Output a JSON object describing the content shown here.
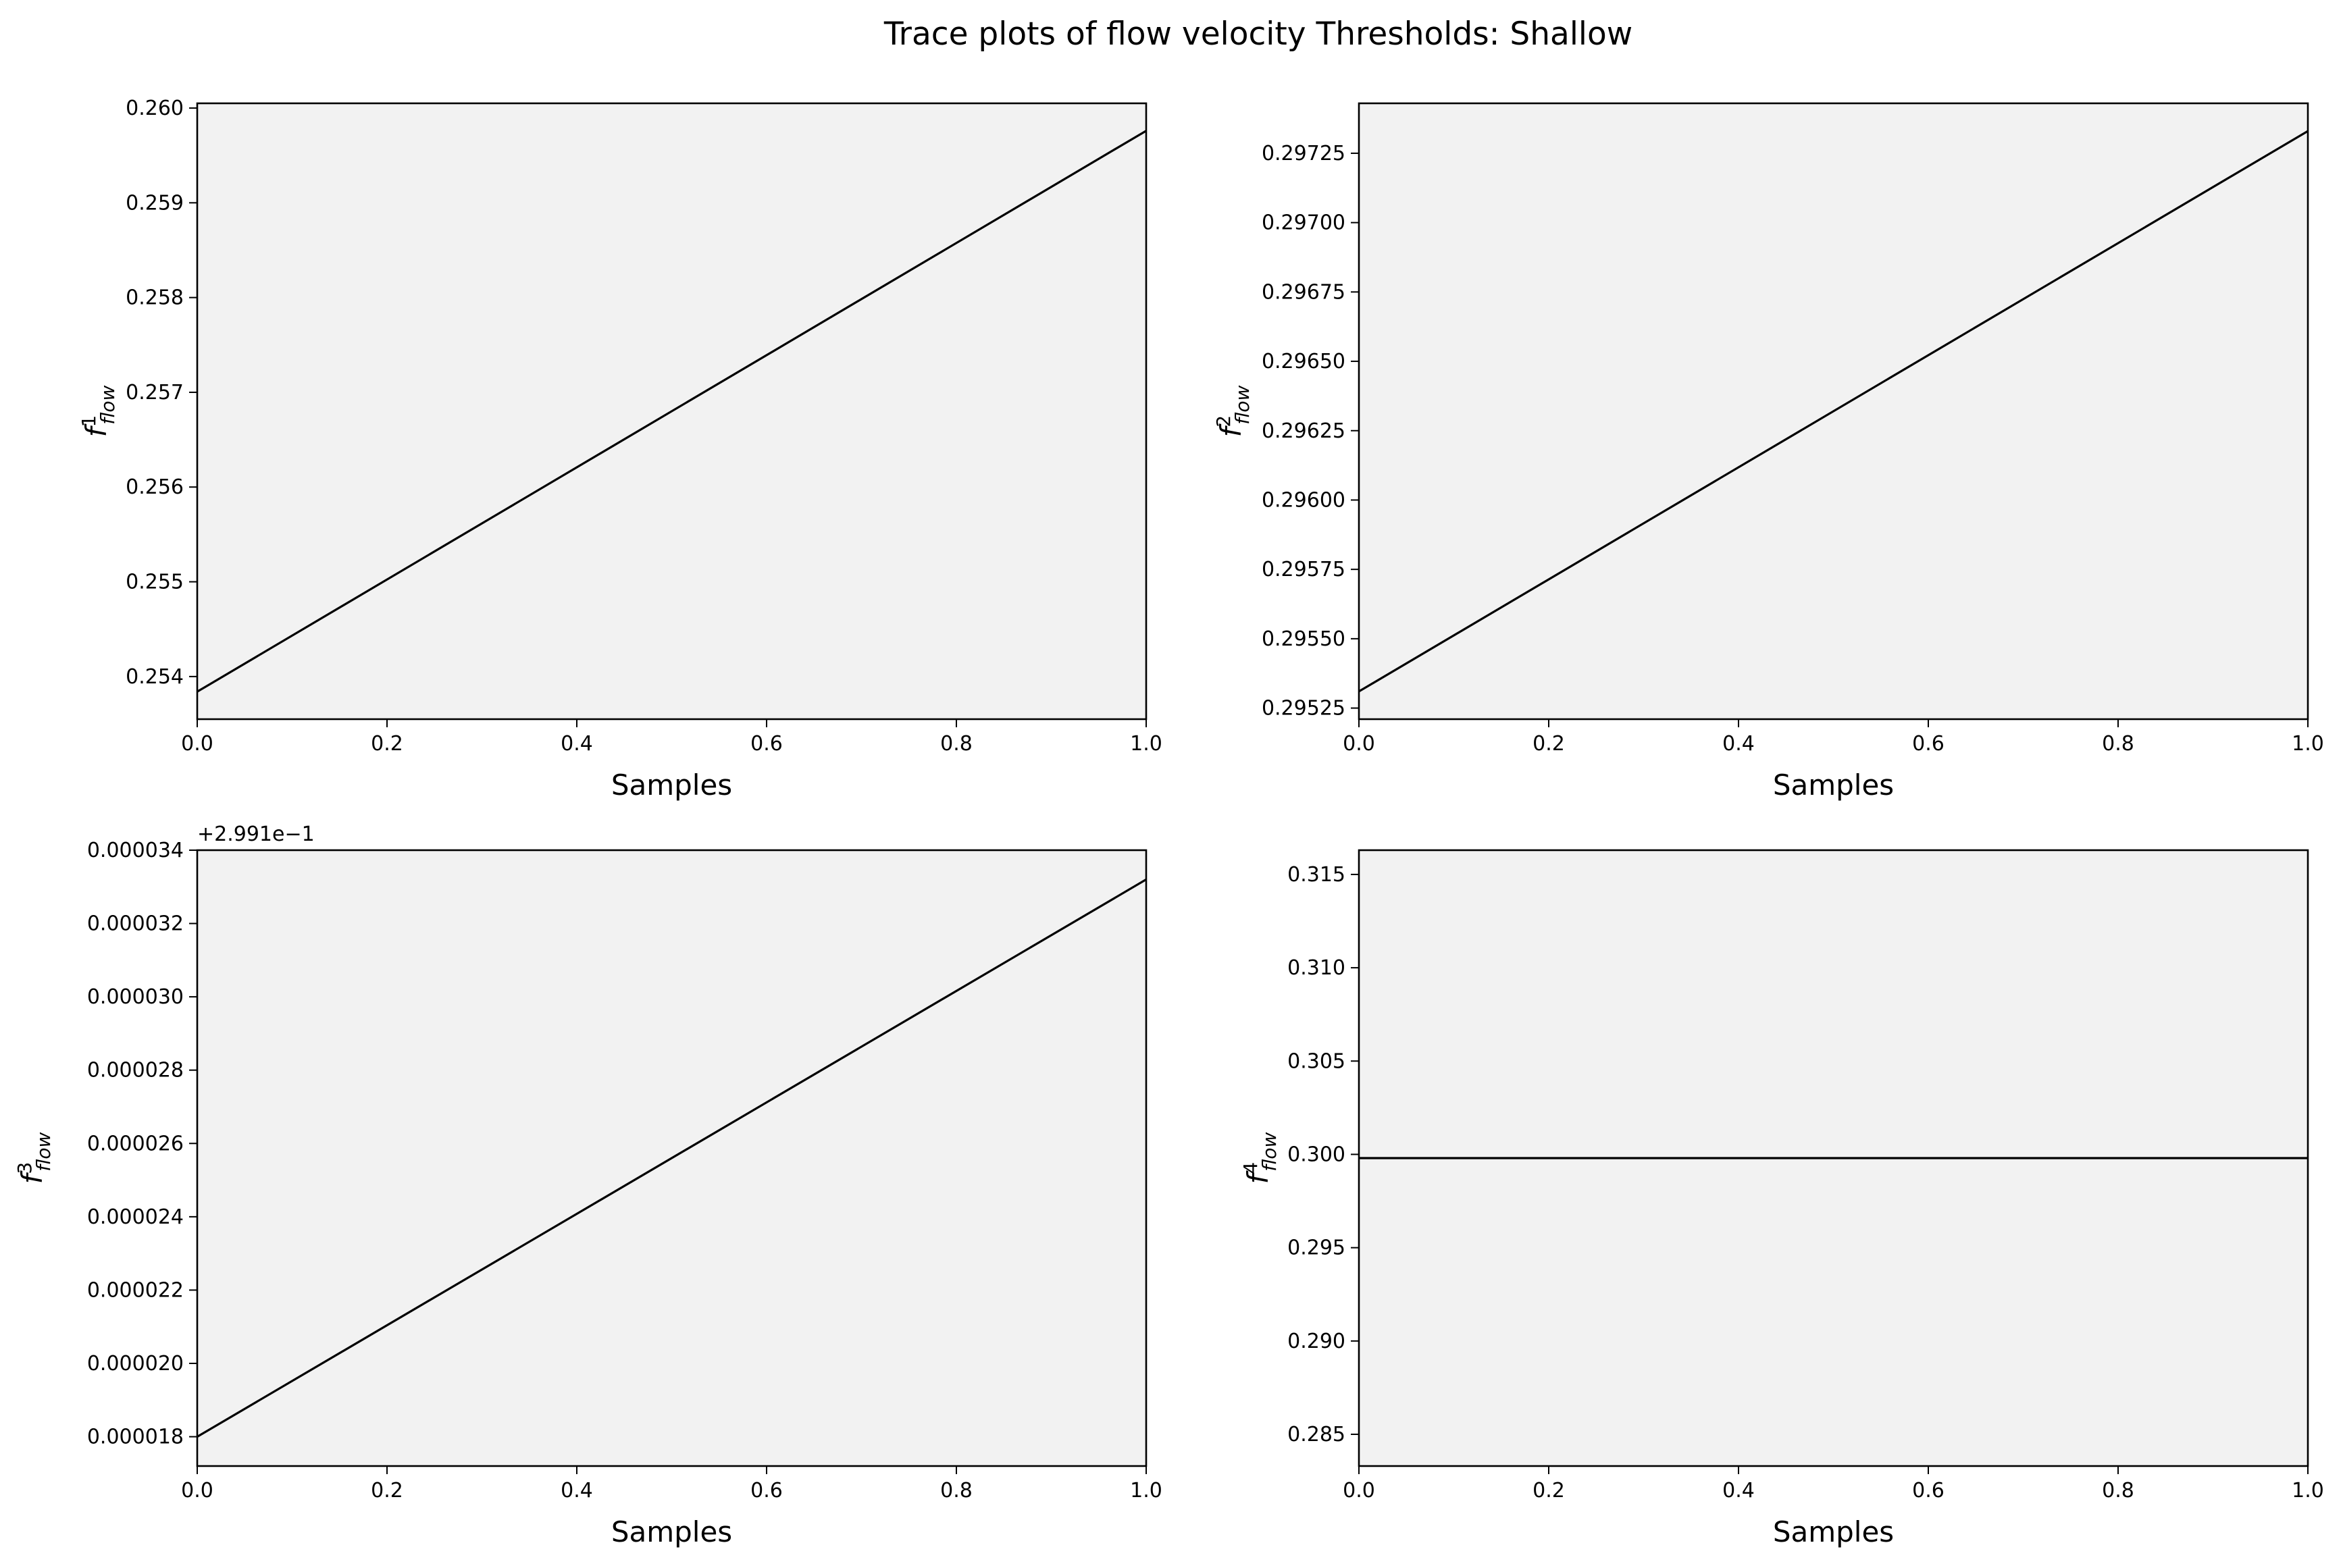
{
  "figure": {
    "title": "Trace plots of flow velocity Thresholds: Shallow",
    "background": "#ffffff",
    "axes_facecolor": "#f2f2f2",
    "line_color": "#000000"
  },
  "chart_data": [
    {
      "type": "line",
      "title": "",
      "xlabel": "Samples",
      "ylabel": {
        "base": "f",
        "sup": "1",
        "sub": "flow"
      },
      "xlim": [
        0.0,
        1.0
      ],
      "ylim": [
        0.25355,
        0.26005
      ],
      "xticks": [
        "0.0",
        "0.2",
        "0.4",
        "0.6",
        "0.8",
        "1.0"
      ],
      "yticks": [
        {
          "value": 0.254,
          "label": "0.254"
        },
        {
          "value": 0.255,
          "label": "0.255"
        },
        {
          "value": 0.256,
          "label": "0.256"
        },
        {
          "value": 0.257,
          "label": "0.257"
        },
        {
          "value": 0.258,
          "label": "0.258"
        },
        {
          "value": 0.259,
          "label": "0.259"
        },
        {
          "value": 0.26,
          "label": "0.260"
        }
      ],
      "offset_text": "",
      "x": [
        0.0,
        1.0
      ],
      "y": [
        0.25384,
        0.25976
      ]
    },
    {
      "type": "line",
      "title": "",
      "xlabel": "Samples",
      "ylabel": {
        "base": "f",
        "sup": "2",
        "sub": "flow"
      },
      "xlim": [
        0.0,
        1.0
      ],
      "ylim": [
        0.29521,
        0.29743
      ],
      "xticks": [
        "0.0",
        "0.2",
        "0.4",
        "0.6",
        "0.8",
        "1.0"
      ],
      "yticks": [
        {
          "value": 0.29525,
          "label": "0.29525"
        },
        {
          "value": 0.2955,
          "label": "0.29550"
        },
        {
          "value": 0.29575,
          "label": "0.29575"
        },
        {
          "value": 0.296,
          "label": "0.29600"
        },
        {
          "value": 0.29625,
          "label": "0.29625"
        },
        {
          "value": 0.2965,
          "label": "0.29650"
        },
        {
          "value": 0.29675,
          "label": "0.29675"
        },
        {
          "value": 0.297,
          "label": "0.29700"
        },
        {
          "value": 0.29725,
          "label": "0.29725"
        }
      ],
      "offset_text": "",
      "x": [
        0.0,
        1.0
      ],
      "y": [
        0.29531,
        0.29733
      ]
    },
    {
      "type": "line",
      "title": "",
      "xlabel": "Samples",
      "ylabel": {
        "base": "f",
        "sup": "3",
        "sub": "flow"
      },
      "xlim": [
        0.0,
        1.0
      ],
      "ylim": [
        1.72e-05,
        3.4e-05
      ],
      "xticks": [
        "0.0",
        "0.2",
        "0.4",
        "0.6",
        "0.8",
        "1.0"
      ],
      "yticks": [
        {
          "value": 1.8e-05,
          "label": "0.000018"
        },
        {
          "value": 2e-05,
          "label": "0.000020"
        },
        {
          "value": 2.2e-05,
          "label": "0.000022"
        },
        {
          "value": 2.4e-05,
          "label": "0.000024"
        },
        {
          "value": 2.6e-05,
          "label": "0.000026"
        },
        {
          "value": 2.8e-05,
          "label": "0.000028"
        },
        {
          "value": 3e-05,
          "label": "0.000030"
        },
        {
          "value": 3.2e-05,
          "label": "0.000032"
        },
        {
          "value": 3.4e-05,
          "label": "0.000034"
        }
      ],
      "offset_text": "+2.991e−1",
      "x": [
        0.0,
        1.0
      ],
      "y": [
        1.8e-05,
        3.32e-05
      ]
    },
    {
      "type": "line",
      "title": "",
      "xlabel": "Samples",
      "ylabel": {
        "base": "f",
        "sup": "4",
        "sub": "flow"
      },
      "xlim": [
        0.0,
        1.0
      ],
      "ylim": [
        0.2833,
        0.3163
      ],
      "xticks": [
        "0.0",
        "0.2",
        "0.4",
        "0.6",
        "0.8",
        "1.0"
      ],
      "yticks": [
        {
          "value": 0.285,
          "label": "0.285"
        },
        {
          "value": 0.29,
          "label": "0.290"
        },
        {
          "value": 0.295,
          "label": "0.295"
        },
        {
          "value": 0.3,
          "label": "0.300"
        },
        {
          "value": 0.305,
          "label": "0.305"
        },
        {
          "value": 0.31,
          "label": "0.310"
        },
        {
          "value": 0.315,
          "label": "0.315"
        }
      ],
      "offset_text": "",
      "x": [
        0.0,
        1.0
      ],
      "y": [
        0.2998,
        0.2998
      ]
    }
  ]
}
